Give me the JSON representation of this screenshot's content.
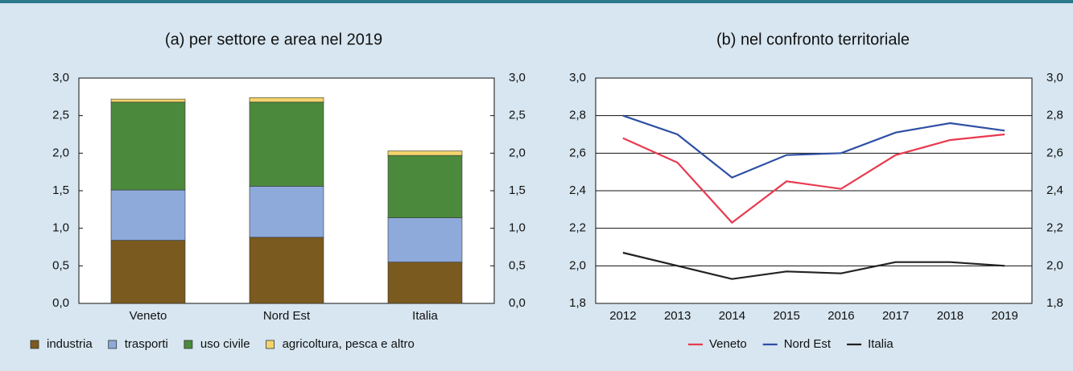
{
  "chart_data": [
    {
      "type": "stacked_bar",
      "title": "(a) per settore e area nel 2019",
      "categories": [
        "Veneto",
        "Nord Est",
        "Italia"
      ],
      "series": [
        {
          "name": "industria",
          "color": "#7a5a1f",
          "values": [
            0.84,
            0.88,
            0.55
          ]
        },
        {
          "name": "trasporti",
          "color": "#8eaadb",
          "values": [
            0.67,
            0.68,
            0.59
          ]
        },
        {
          "name": "uso civile",
          "color": "#4b8a3d",
          "values": [
            1.17,
            1.12,
            0.83
          ]
        },
        {
          "name": "agricoltura, pesca e altro",
          "color": "#f3d46c",
          "values": [
            0.04,
            0.06,
            0.06
          ]
        }
      ],
      "ylim": [
        0,
        3
      ],
      "yticks": [
        {
          "value": 0,
          "label": "0,0"
        },
        {
          "value": 0.5,
          "label": "0,5"
        },
        {
          "value": 1,
          "label": "1,0"
        },
        {
          "value": 1.5,
          "label": "1,5"
        },
        {
          "value": 2,
          "label": "2,0"
        },
        {
          "value": 2.5,
          "label": "2,5"
        },
        {
          "value": 3,
          "label": "3,0"
        }
      ],
      "grid": false
    },
    {
      "type": "line",
      "title": "(b) nel confronto territoriale",
      "categories": [
        "2012",
        "2013",
        "2014",
        "2015",
        "2016",
        "2017",
        "2018",
        "2019"
      ],
      "series": [
        {
          "name": "Veneto",
          "color": "#e83a4f",
          "values": [
            2.68,
            2.55,
            2.23,
            2.45,
            2.41,
            2.59,
            2.67,
            2.7
          ]
        },
        {
          "name": "Nord Est",
          "color": "#2e4fa3",
          "values": [
            2.8,
            2.7,
            2.47,
            2.59,
            2.6,
            2.71,
            2.76,
            2.72
          ]
        },
        {
          "name": "Italia",
          "color": "#222222",
          "values": [
            2.07,
            2.0,
            1.93,
            1.97,
            1.96,
            2.02,
            2.02,
            2.0
          ]
        }
      ],
      "ylim": [
        1.8,
        3.0
      ],
      "yticks": [
        {
          "value": 1.8,
          "label": "1,8"
        },
        {
          "value": 2.0,
          "label": "2,0"
        },
        {
          "value": 2.2,
          "label": "2,2"
        },
        {
          "value": 2.4,
          "label": "2,4"
        },
        {
          "value": 2.6,
          "label": "2,6"
        },
        {
          "value": 2.8,
          "label": "2,8"
        },
        {
          "value": 3.0,
          "label": "3,0"
        }
      ],
      "grid": true
    }
  ]
}
